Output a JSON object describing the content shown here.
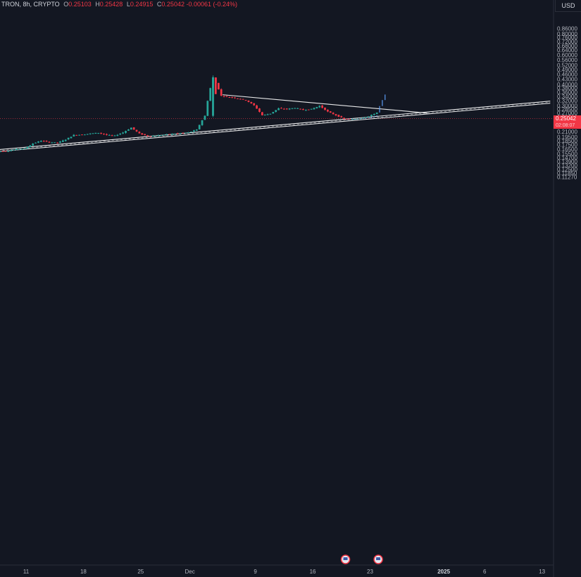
{
  "legend": {
    "symbol": "TRON, 8h, CRYPTO",
    "open_key": "O",
    "open": "0.25103",
    "high_key": "H",
    "high": "0.25428",
    "low_key": "L",
    "low": "0.24915",
    "close_key": "C",
    "close": "0.25042",
    "change": "-0.00061 (-0.24%)"
  },
  "currency": "USD",
  "last_price": {
    "value": 0.25042,
    "label": "0.25042",
    "countdown": "02:08:07"
  },
  "colors": {
    "up": "#26a69a",
    "down": "#f23645",
    "projection": "#5b9cf6",
    "background": "#131722",
    "trendline": "#ffffff"
  },
  "event_markers": [
    {
      "date": "2024-12-20",
      "icon": "us-flag-icon"
    },
    {
      "date": "2024-12-24",
      "icon": "us-flag-icon"
    }
  ],
  "chart_data": {
    "type": "candlestick",
    "timeframe": "8h",
    "y_scale": "log",
    "ylim": [
      0.112,
      0.88
    ],
    "y_ticks": [
      "0.86000",
      "0.80000",
      "0.76000",
      "0.72000",
      "0.68000",
      "0.64000",
      "0.60000",
      "0.56000",
      "0.52000",
      "0.49000",
      "0.46000",
      "0.43000",
      "0.40000",
      "0.38000",
      "0.36000",
      "0.34000",
      "0.32000",
      "0.30000",
      "0.28500",
      "0.27000",
      "0.25500",
      "0.24000",
      "0.22500",
      "0.21000",
      "0.19500",
      "0.18500",
      "0.17500",
      "0.16500",
      "0.15500",
      "0.14700",
      "0.13900",
      "0.13200",
      "0.12500",
      "0.11850",
      "0.11270"
    ],
    "x_ticks": [
      {
        "label": "11",
        "date": "2024-11-11"
      },
      {
        "label": "18",
        "date": "2024-11-18"
      },
      {
        "label": "25",
        "date": "2024-11-25"
      },
      {
        "label": "Dec",
        "date": "2024-12-01"
      },
      {
        "label": "9",
        "date": "2024-12-09"
      },
      {
        "label": "16",
        "date": "2024-12-16"
      },
      {
        "label": "23",
        "date": "2024-12-23"
      },
      {
        "label": "2025",
        "date": "2025-01-01"
      },
      {
        "label": "6",
        "date": "2025-01-06"
      },
      {
        "label": "13",
        "date": "2025-01-13"
      }
    ],
    "candle_close_path": [
      [
        "2024-11-07",
        0.159
      ],
      [
        "2024-11-08",
        0.16
      ],
      [
        "2024-11-09",
        0.161
      ],
      [
        "2024-11-10",
        0.165
      ],
      [
        "2024-11-11",
        0.166
      ],
      [
        "2024-11-12",
        0.178
      ],
      [
        "2024-11-13",
        0.185
      ],
      [
        "2024-11-14",
        0.181
      ],
      [
        "2024-11-15",
        0.18
      ],
      [
        "2024-11-16",
        0.188
      ],
      [
        "2024-11-17",
        0.2
      ],
      [
        "2024-11-18",
        0.201
      ],
      [
        "2024-11-19",
        0.204
      ],
      [
        "2024-11-20",
        0.206
      ],
      [
        "2024-11-21",
        0.2
      ],
      [
        "2024-11-22",
        0.198
      ],
      [
        "2024-11-23",
        0.207
      ],
      [
        "2024-11-24",
        0.221
      ],
      [
        "2024-11-25",
        0.204
      ],
      [
        "2024-11-26",
        0.197
      ],
      [
        "2024-11-27",
        0.198
      ],
      [
        "2024-11-28",
        0.201
      ],
      [
        "2024-11-29",
        0.203
      ],
      [
        "2024-11-30",
        0.205
      ],
      [
        "2024-12-01",
        0.207
      ],
      [
        "2024-12-02",
        0.215
      ],
      [
        "2024-12-03",
        0.26
      ],
      [
        "2024-12-04",
        0.44
      ],
      [
        "2024-12-05",
        0.342
      ],
      [
        "2024-12-06",
        0.336
      ],
      [
        "2024-12-07",
        0.33
      ],
      [
        "2024-12-08",
        0.322
      ],
      [
        "2024-12-09",
        0.3
      ],
      [
        "2024-12-10",
        0.262
      ],
      [
        "2024-12-11",
        0.268
      ],
      [
        "2024-12-12",
        0.288
      ],
      [
        "2024-12-13",
        0.285
      ],
      [
        "2024-12-14",
        0.29
      ],
      [
        "2024-12-15",
        0.282
      ],
      [
        "2024-12-16",
        0.285
      ],
      [
        "2024-12-17",
        0.298
      ],
      [
        "2024-12-18",
        0.275
      ],
      [
        "2024-12-19",
        0.262
      ],
      [
        "2024-12-20",
        0.249
      ],
      [
        "2024-12-21",
        0.248
      ],
      [
        "2024-12-22",
        0.252
      ],
      [
        "2024-12-23",
        0.258
      ],
      [
        "2024-12-24",
        0.272
      ]
    ],
    "projection_bars": [
      [
        "2024-12-20",
        0.246,
        0.25
      ],
      [
        "2024-12-21",
        0.247,
        0.251
      ],
      [
        "2024-12-22",
        0.249,
        0.253
      ],
      [
        "2024-12-23",
        0.252,
        0.262
      ],
      [
        "2024-12-24",
        0.272,
        0.348
      ]
    ],
    "trendlines": [
      {
        "name": "descending-resistance",
        "points": [
          [
            "2024-12-05",
            0.347
          ],
          [
            "2024-12-30",
            0.27
          ]
        ]
      },
      {
        "name": "ascending-support-upper",
        "points": [
          [
            "2024-11-04",
            0.158
          ],
          [
            "2025-01-14",
            0.318
          ]
        ]
      },
      {
        "name": "ascending-support-lower",
        "points": [
          [
            "2024-11-04",
            0.154
          ],
          [
            "2025-01-14",
            0.309
          ]
        ]
      },
      {
        "name": "ascending-support-mid",
        "dashed": true,
        "points": [
          [
            "2024-11-04",
            0.156
          ],
          [
            "2025-01-14",
            0.3135
          ]
        ]
      }
    ],
    "grid": false
  }
}
